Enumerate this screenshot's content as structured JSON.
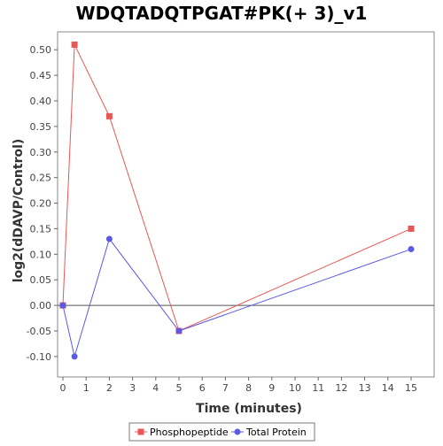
{
  "chart_data": {
    "type": "line",
    "title": "WDQTADQTPGAT#PK(+ 3)_v1",
    "xlabel": "Time (minutes)",
    "ylabel": "log2(dDAVP/Control)",
    "x_categories": [
      "0",
      "1",
      "2",
      "3",
      "4",
      "5",
      "6",
      "7",
      "8",
      "9",
      "10",
      "11",
      "12",
      "13",
      "14",
      "15"
    ],
    "y_ticks": [
      "-0.10",
      "-0.05",
      "0.00",
      "0.05",
      "0.10",
      "0.15",
      "0.20",
      "0.25",
      "0.30",
      "0.35",
      "0.40",
      "0.45",
      "0.50"
    ],
    "ylim": [
      -0.14,
      0.535
    ],
    "grid": false,
    "legend_position": "bottom",
    "series": [
      {
        "name": "Phosphopeptide",
        "color": "#e85656",
        "marker": "square",
        "x": [
          "0",
          "0.5",
          "2",
          "5",
          "15"
        ],
        "y": [
          0.0,
          0.51,
          0.37,
          -0.05,
          0.15
        ]
      },
      {
        "name": "Total Protein",
        "color": "#5a5ae6",
        "marker": "circle",
        "x": [
          "0",
          "0.5",
          "2",
          "5",
          "15"
        ],
        "y": [
          0.0,
          -0.1,
          0.13,
          -0.05,
          0.11
        ]
      }
    ]
  }
}
